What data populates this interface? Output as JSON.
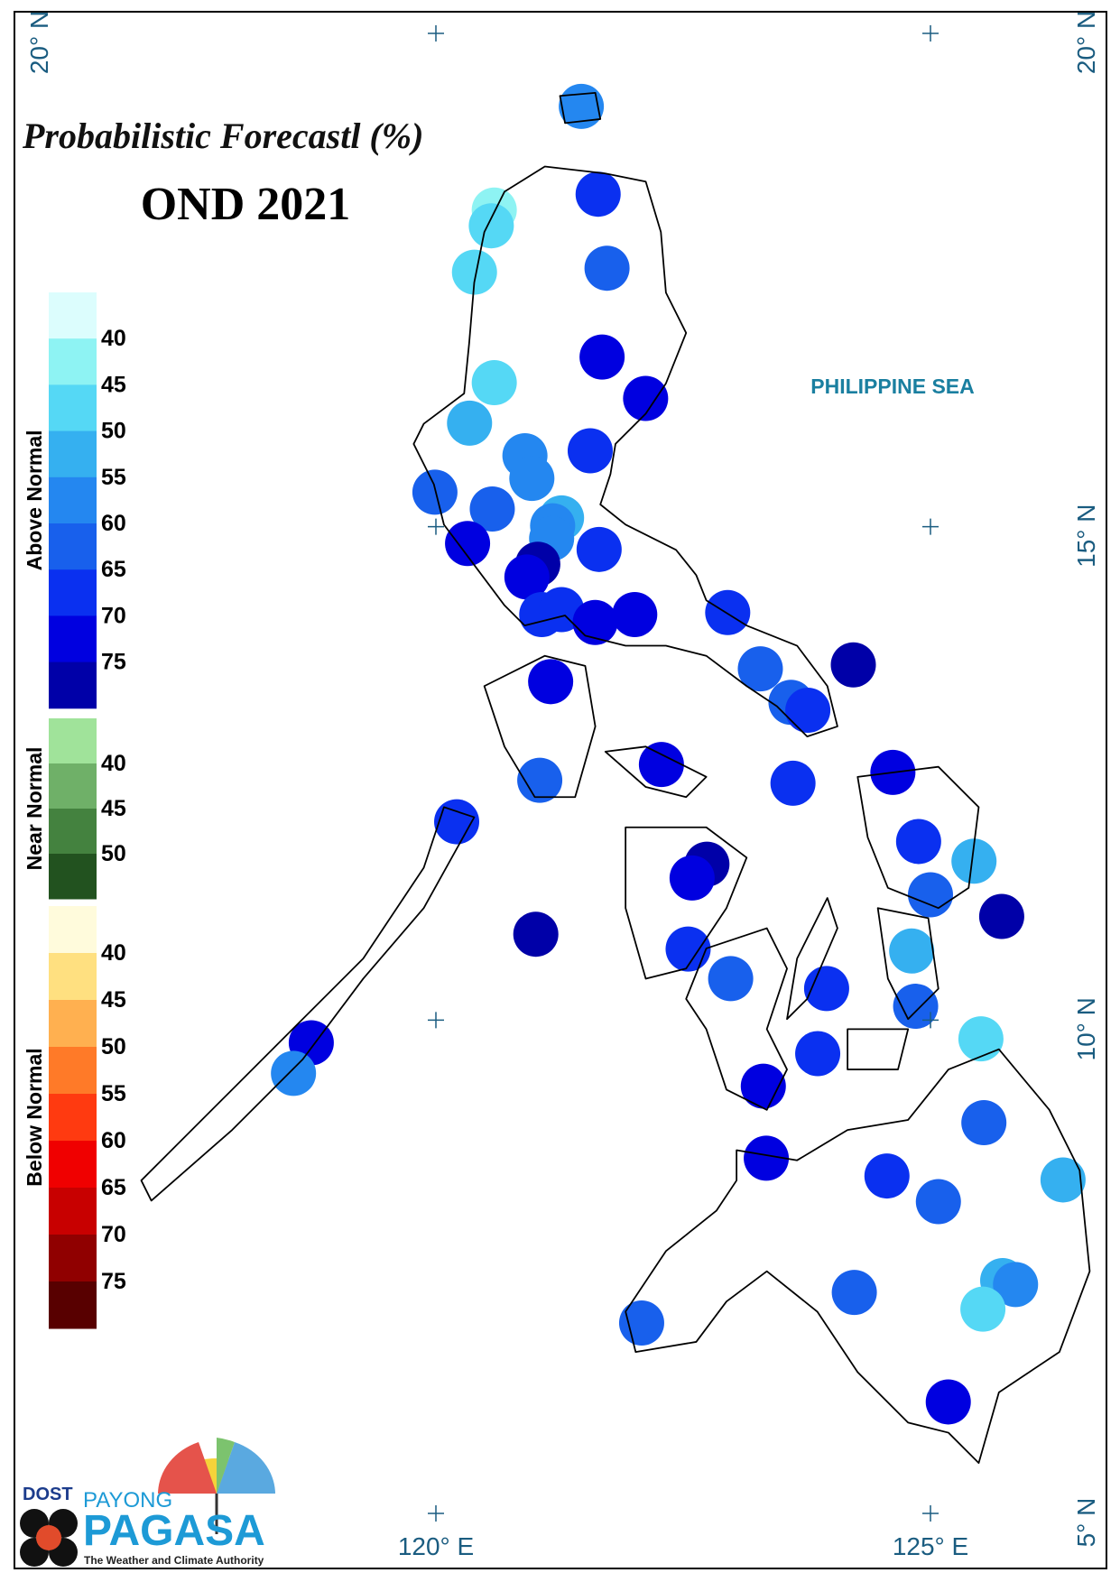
{
  "title": "Probabilistic Forecastl (%)",
  "subtitle": "OND 2021",
  "sea_label": "PHILIPPINE SEA",
  "map": {
    "lon_ticks": [
      {
        "value": 120,
        "label": "120° E"
      },
      {
        "value": 125,
        "label": "125° E"
      }
    ],
    "lat_ticks": [
      {
        "value": 20,
        "label": "20° N"
      },
      {
        "value": 15,
        "label": "15° N"
      },
      {
        "value": 10,
        "label": "10° N"
      },
      {
        "value": 5,
        "label": "5° N"
      }
    ]
  },
  "legend": [
    {
      "title": "Above Normal",
      "colors": [
        "#dcfdfd",
        "#8ef3f3",
        "#55d8f5",
        "#35b0f0",
        "#2487f0",
        "#1860ec",
        "#0a30f0",
        "#0000e0",
        "#0000a8"
      ],
      "ticks": [
        40,
        45,
        50,
        55,
        60,
        65,
        70,
        75
      ]
    },
    {
      "title": "Near Normal",
      "colors": [
        "#a0e39a",
        "#6fb068",
        "#44823f",
        "#22521f"
      ],
      "ticks": [
        40,
        45,
        50
      ]
    },
    {
      "title": "Below Normal",
      "colors": [
        "#fffbdc",
        "#ffe080",
        "#ffb050",
        "#ff7a28",
        "#ff3a10",
        "#f00000",
        "#c80000",
        "#900000",
        "#580000"
      ],
      "ticks": [
        40,
        45,
        50,
        55,
        60,
        65,
        70,
        75
      ]
    }
  ],
  "stations": {
    "lon": [
      121.47,
      121.64,
      120.59,
      120.56,
      120.39,
      121.73,
      121.68,
      120.59,
      122.12,
      120.34,
      120.9,
      121.56,
      120.97,
      119.99,
      120.57,
      121.27,
      121.18,
      121.17,
      120.32,
      121.65,
      121.03,
      120.92,
      121.07,
      121.27,
      121.61,
      122.01,
      122.95,
      123.28,
      124.22,
      121.16,
      123.59,
      123.76,
      122.28,
      121.05,
      123.61,
      124.62,
      120.21,
      124.88,
      125.44,
      122.74,
      122.59,
      125.0,
      125.72,
      121.01,
      122.55,
      124.81,
      122.98,
      123.95,
      124.85,
      118.74,
      125.51,
      118.56,
      123.86,
      123.31,
      125.54,
      123.34,
      124.56,
      126.34,
      125.08,
      125.73,
      125.86,
      124.23,
      125.53,
      122.08,
      125.18
    ],
    "lat": [
      19.26,
      18.37,
      18.21,
      18.05,
      17.58,
      17.62,
      16.72,
      16.46,
      16.3,
      16.05,
      15.72,
      15.77,
      15.49,
      15.35,
      15.18,
      15.09,
      15.01,
      14.88,
      14.83,
      14.77,
      14.62,
      14.49,
      14.11,
      14.16,
      14.03,
      14.11,
      14.13,
      13.56,
      13.6,
      13.43,
      13.22,
      13.14,
      12.59,
      12.43,
      12.4,
      12.51,
      12.01,
      11.81,
      11.61,
      11.58,
      11.44,
      11.27,
      11.05,
      10.87,
      10.72,
      10.7,
      10.42,
      10.32,
      10.14,
      9.77,
      9.81,
      9.46,
      9.66,
      9.33,
      8.96,
      8.6,
      8.42,
      8.38,
      8.16,
      7.36,
      7.32,
      7.24,
      7.07,
      6.93,
      6.13
    ],
    "values": [
      55,
      65,
      40,
      45,
      45,
      60,
      70,
      45,
      70,
      50,
      55,
      65,
      55,
      60,
      60,
      50,
      55,
      55,
      70,
      65,
      75,
      70,
      65,
      65,
      70,
      70,
      65,
      60,
      75,
      70,
      60,
      65,
      70,
      60,
      65,
      70,
      65,
      65,
      50,
      75,
      70,
      60,
      75,
      75,
      65,
      50,
      60,
      65,
      60,
      70,
      45,
      55,
      65,
      70,
      60,
      70,
      65,
      50,
      60,
      50,
      55,
      60,
      45,
      60,
      70
    ]
  },
  "logo": {
    "agency": "DOST",
    "tagline_top": "PAYONG",
    "name": "PAGASA",
    "motto": "The Weather and Climate Authority"
  }
}
